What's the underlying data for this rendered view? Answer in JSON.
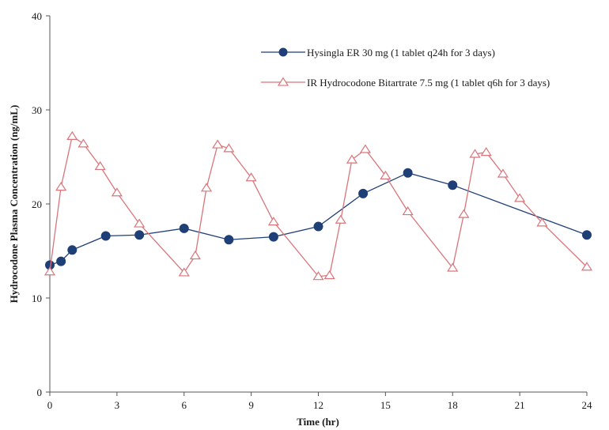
{
  "chart_data": {
    "type": "line",
    "xlabel": "Time (hr)",
    "ylabel": "Hydrocodone Plasma Concentration (ng/mL)",
    "xlim": [
      0,
      24
    ],
    "ylim": [
      0,
      40
    ],
    "xticks": [
      0,
      3,
      6,
      9,
      12,
      15,
      18,
      21,
      24
    ],
    "yticks": [
      0,
      10,
      20,
      30,
      40
    ],
    "grid": false,
    "legend_position": "top-right",
    "series": [
      {
        "name": "Hysingla ER 30 mg (1 tablet q24h for 3 days)",
        "color": "#1f3f77",
        "marker": "circle-filled",
        "x": [
          0,
          0.5,
          1,
          2.5,
          4,
          6,
          8,
          10,
          12,
          14,
          16,
          18,
          24
        ],
        "y": [
          13.5,
          13.9,
          15.1,
          16.6,
          16.7,
          17.4,
          16.2,
          16.5,
          17.6,
          21.1,
          23.3,
          22.0,
          16.7
        ]
      },
      {
        "name": "IR Hydrocodone Bitartrate 7.5 mg (1 tablet q6h for 3 days)",
        "color": "#d9757a",
        "marker": "triangle-open",
        "x": [
          0,
          0.5,
          1,
          1.5,
          2.25,
          3,
          4,
          6,
          6.5,
          7,
          7.5,
          8,
          9,
          10,
          12,
          12.5,
          13,
          13.5,
          14.1,
          15,
          16,
          18,
          18.5,
          19,
          19.5,
          20.25,
          21,
          22,
          24
        ],
        "y": [
          12.8,
          21.8,
          27.2,
          26.4,
          24.0,
          21.2,
          17.9,
          12.7,
          14.5,
          21.7,
          26.3,
          25.9,
          22.8,
          18.1,
          12.3,
          12.4,
          18.3,
          24.7,
          25.8,
          23.0,
          19.2,
          13.2,
          18.9,
          25.3,
          25.5,
          23.2,
          20.6,
          18.0,
          13.3
        ]
      }
    ]
  }
}
